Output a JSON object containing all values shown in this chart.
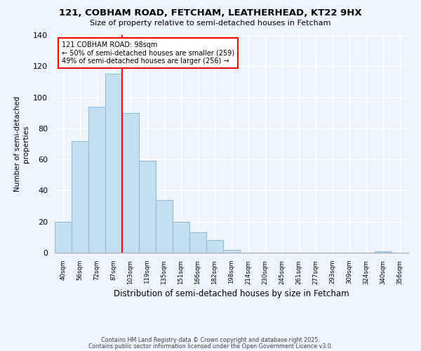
{
  "title": "121, COBHAM ROAD, FETCHAM, LEATHERHEAD, KT22 9HX",
  "subtitle": "Size of property relative to semi-detached houses in Fetcham",
  "xlabel": "Distribution of semi-detached houses by size in Fetcham",
  "ylabel": "Number of semi-detached\nproperties",
  "bar_values": [
    20,
    72,
    94,
    115,
    90,
    59,
    34,
    20,
    13,
    8,
    2,
    0,
    0,
    0,
    0,
    0,
    0,
    0,
    0,
    1,
    0
  ],
  "bar_labels": [
    "40sqm",
    "56sqm",
    "72sqm",
    "87sqm",
    "103sqm",
    "119sqm",
    "135sqm",
    "151sqm",
    "166sqm",
    "182sqm",
    "198sqm",
    "214sqm",
    "230sqm",
    "245sqm",
    "261sqm",
    "277sqm",
    "293sqm",
    "309sqm",
    "324sqm",
    "340sqm",
    "356sqm"
  ],
  "bar_color": "#c5dff0",
  "bar_edge_color": "#8ab8d8",
  "vline_color": "red",
  "vline_pos": 3.5,
  "annotation_title": "121 COBHAM ROAD: 98sqm",
  "annotation_line1": "← 50% of semi-detached houses are smaller (259)",
  "annotation_line2": "49% of semi-detached houses are larger (256) →",
  "annotation_box_color": "white",
  "annotation_box_edge": "red",
  "ylim": [
    0,
    140
  ],
  "yticks": [
    0,
    20,
    40,
    60,
    80,
    100,
    120,
    140
  ],
  "footer1": "Contains HM Land Registry data © Crown copyright and database right 2025.",
  "footer2": "Contains public sector information licensed under the Open Government Licence v3.0.",
  "background_color": "#eef4fb",
  "grid_color": "#ffffff",
  "title_fontsize": 9.5,
  "subtitle_fontsize": 8.0
}
